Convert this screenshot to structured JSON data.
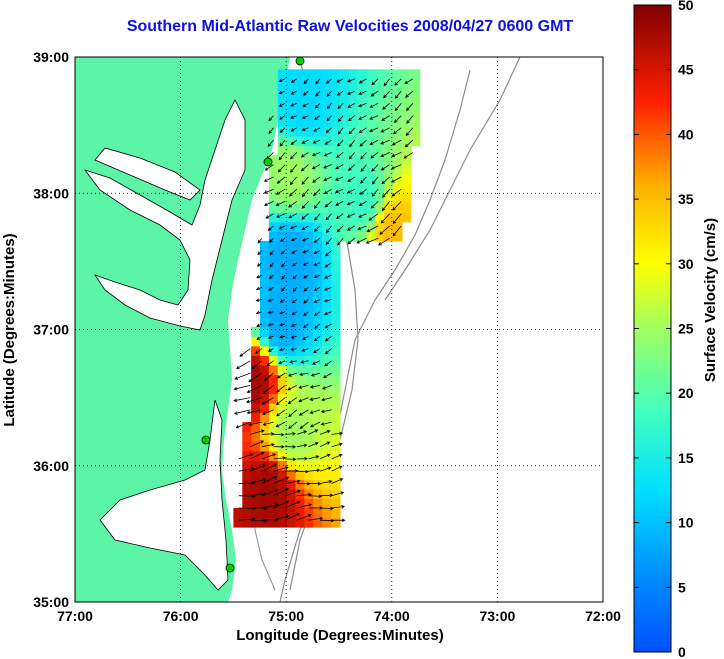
{
  "title": "Southern Mid-Atlantic Raw Velocities 2008/04/27 0600 GMT",
  "map": {
    "xlabel": "Longitude (Degrees:Minutes)",
    "ylabel": "Latitude (Degrees:Minutes)",
    "lon_ticks": [
      "77:00",
      "76:00",
      "75:00",
      "74:00",
      "73:00",
      "72:00"
    ],
    "lat_ticks": [
      "39:00",
      "38:00",
      "37:00",
      "36:00",
      "35:00"
    ],
    "lon_range": [
      -77,
      -72
    ],
    "lat_range": [
      35,
      39
    ],
    "land_color": "#5cf5a8",
    "grid": "dotted"
  },
  "colorbar": {
    "label": "Surface Velocity (cm/s)",
    "ticks": [
      "50",
      "45",
      "40",
      "35",
      "30",
      "25",
      "20",
      "15",
      "10",
      "5",
      "0"
    ],
    "range": [
      0,
      50
    ],
    "colormap": "jet"
  },
  "chart_data": {
    "type": "heatmap",
    "title": "Southern Mid-Atlantic Raw Velocities 2008/04/27 0600 GMT",
    "xlabel": "Longitude (Degrees:Minutes)",
    "ylabel": "Latitude (Degrees:Minutes)",
    "xlim": [
      -77,
      -72
    ],
    "ylim": [
      35,
      39
    ],
    "clim": [
      0,
      50
    ],
    "cbar_label": "Surface Velocity (cm/s)",
    "regions": [
      {
        "lon": -74.9,
        "lat": 38.6,
        "speed": 12
      },
      {
        "lon": -75.0,
        "lat": 38.1,
        "speed": 25
      },
      {
        "lon": -74.3,
        "lat": 37.9,
        "speed": 18
      },
      {
        "lon": -74.05,
        "lat": 37.7,
        "speed": 35
      },
      {
        "lon": -75.0,
        "lat": 37.5,
        "speed": 8
      },
      {
        "lon": -75.1,
        "lat": 37.0,
        "speed": 8
      },
      {
        "lon": -75.35,
        "lat": 36.6,
        "speed": 48
      },
      {
        "lon": -75.0,
        "lat": 36.2,
        "speed": 25
      },
      {
        "lon": -75.2,
        "lat": 35.8,
        "speed": 48
      }
    ]
  }
}
